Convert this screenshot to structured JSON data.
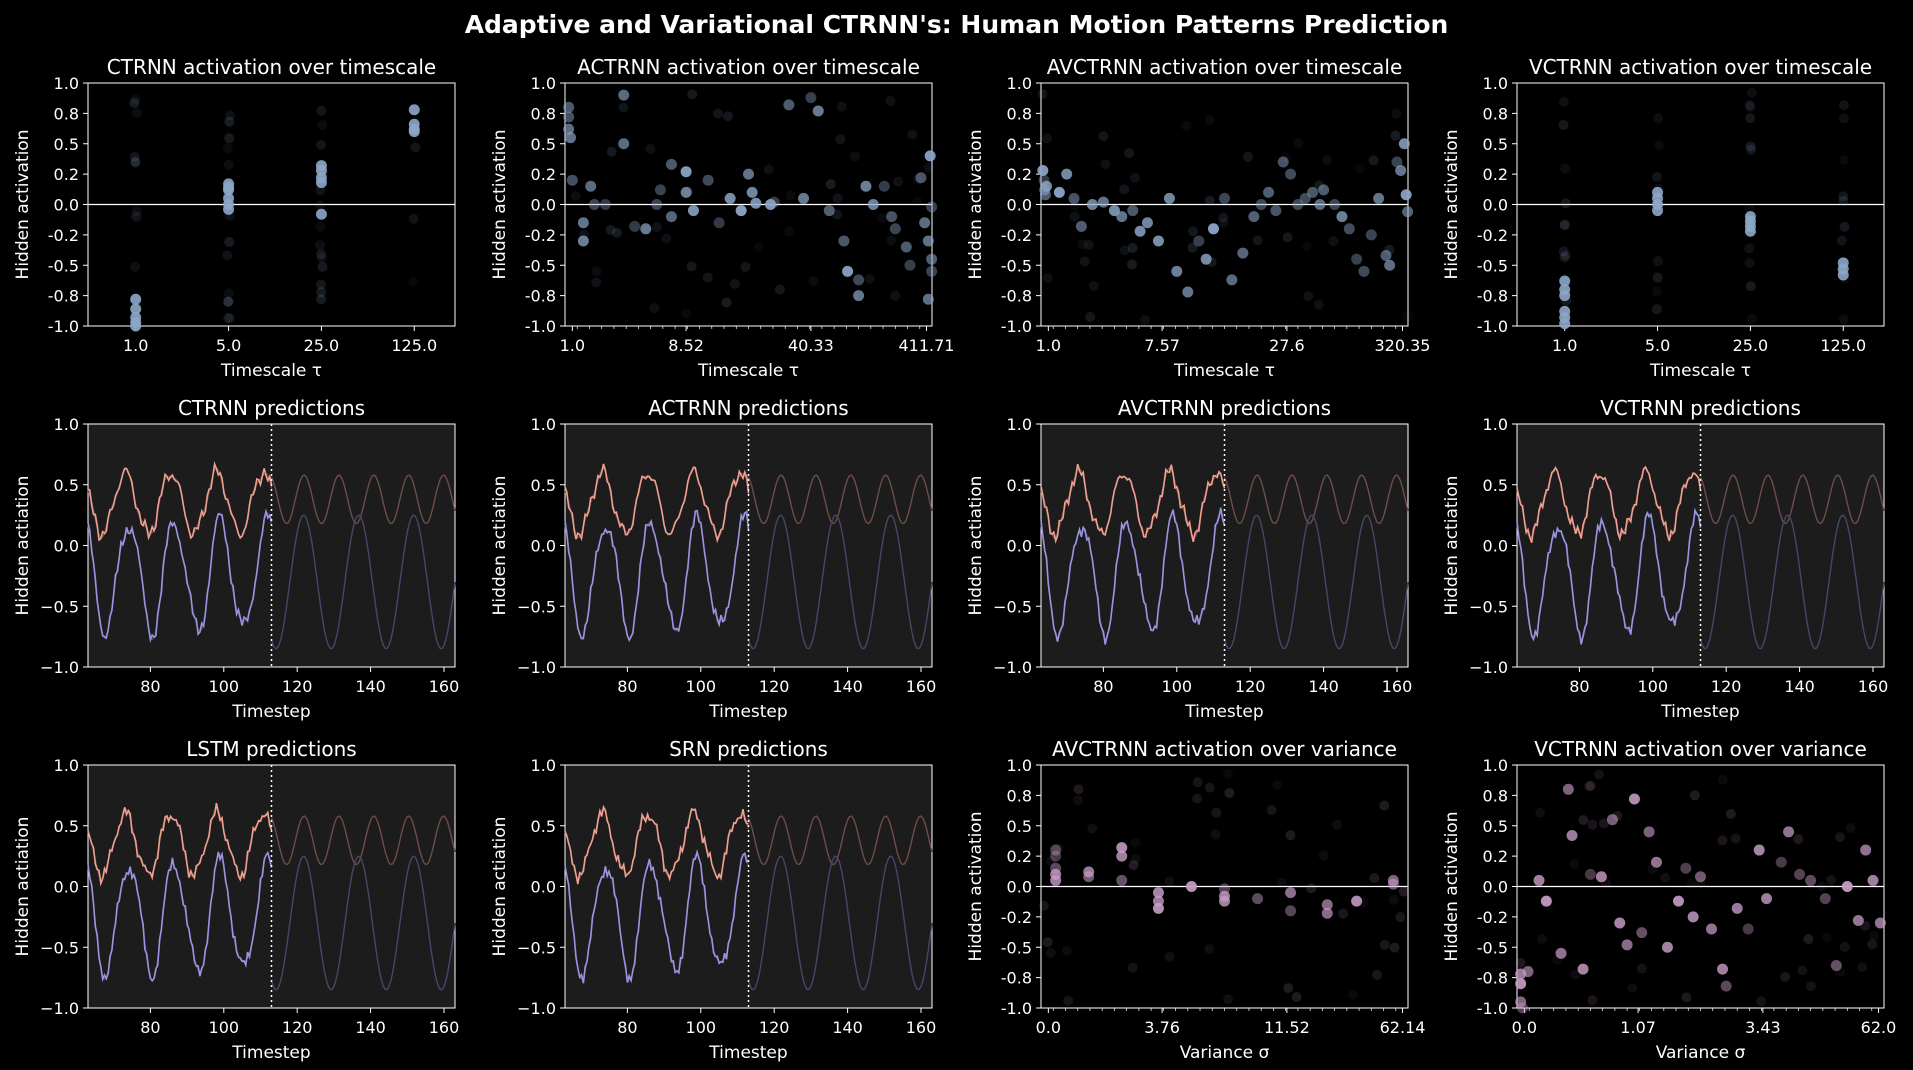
{
  "title": "Adaptive and Variational CTRNN's: Human Motion Patterns Prediction",
  "colors": {
    "background": "#000000",
    "panel_line": "#1c1c1c",
    "scatter_timescale": "#8da6c8",
    "scatter_variance": "#c79dc6",
    "target_top": "#f0a090",
    "target_bottom": "#9a95e0",
    "future_top": "#6e4c48",
    "future_bottom": "#47466a"
  },
  "chart_data": [
    {
      "id": "ctrnn-activation",
      "type": "scatter",
      "title": "CTRNN activation over timescale",
      "xlabel": "Timescale τ",
      "ylabel": "Hidden activation",
      "ylim": [
        -1,
        1
      ],
      "yticks": [
        "-1.0",
        "-0.8",
        "-0.5",
        "-0.2",
        "0.0",
        "0.2",
        "0.5",
        "0.8",
        "1.0"
      ],
      "xticks": [
        "1.0",
        "5.0",
        "25.0",
        "125.0"
      ],
      "hline": 0,
      "groups": [
        {
          "x": "1.0",
          "values": [
            -0.78,
            -0.86,
            -0.93,
            -0.97,
            -1.0
          ]
        },
        {
          "x": "5.0",
          "values": [
            0.17,
            0.14,
            0.12,
            0.05,
            0.0,
            -0.04
          ]
        },
        {
          "x": "25.0",
          "values": [
            0.32,
            0.28,
            0.22,
            0.18,
            -0.08
          ]
        },
        {
          "x": "125.0",
          "values": [
            0.78,
            0.66,
            0.62,
            0.6
          ]
        }
      ]
    },
    {
      "id": "actrnn-activation",
      "type": "scatter",
      "title": "ACTRNN activation over timescale",
      "xlabel": "Timescale τ",
      "ylabel": "Hidden activation",
      "ylim": [
        -1,
        1
      ],
      "yticks": [
        "-1.0",
        "-0.8",
        "-0.5",
        "-0.2",
        "0.0",
        "0.2",
        "0.5",
        "0.8",
        "1.0"
      ],
      "xticks": [
        "1.0",
        "8.52",
        "40.33",
        "411.71"
      ],
      "hline": 0,
      "points": [
        [
          0.01,
          0.8
        ],
        [
          0.01,
          0.72
        ],
        [
          0.01,
          0.62
        ],
        [
          0.015,
          0.55
        ],
        [
          0.02,
          0.2
        ],
        [
          0.05,
          -0.15
        ],
        [
          0.05,
          -0.3
        ],
        [
          0.07,
          0.15
        ],
        [
          0.08,
          0.0
        ],
        [
          0.11,
          0.0
        ],
        [
          0.16,
          0.5
        ],
        [
          0.16,
          0.9
        ],
        [
          0.19,
          -0.18
        ],
        [
          0.22,
          -0.2
        ],
        [
          0.25,
          0.0
        ],
        [
          0.26,
          0.12
        ],
        [
          0.29,
          0.33
        ],
        [
          0.29,
          -0.1
        ],
        [
          0.33,
          0.1
        ],
        [
          0.33,
          0.27
        ],
        [
          0.35,
          -0.05
        ],
        [
          0.39,
          0.2
        ],
        [
          0.42,
          -0.15
        ],
        [
          0.45,
          0.05
        ],
        [
          0.48,
          -0.05
        ],
        [
          0.52,
          0.01
        ],
        [
          0.51,
          0.1
        ],
        [
          0.5,
          0.25
        ],
        [
          0.56,
          0.0
        ],
        [
          0.57,
          0.02
        ],
        [
          0.61,
          0.82
        ],
        [
          0.65,
          0.05
        ],
        [
          0.67,
          0.88
        ],
        [
          0.69,
          0.77
        ],
        [
          0.72,
          -0.05
        ],
        [
          0.76,
          -0.3
        ],
        [
          0.77,
          -0.55
        ],
        [
          0.8,
          -0.75
        ],
        [
          0.8,
          -0.62
        ],
        [
          0.82,
          0.15
        ],
        [
          0.84,
          0.0
        ],
        [
          0.87,
          0.15
        ],
        [
          0.89,
          -0.1
        ],
        [
          0.9,
          -0.2
        ],
        [
          0.93,
          -0.35
        ],
        [
          0.94,
          -0.5
        ],
        [
          0.97,
          0.22
        ],
        [
          0.98,
          -0.15
        ],
        [
          0.99,
          -0.3
        ],
        [
          0.99,
          -0.78
        ],
        [
          0.995,
          0.4
        ],
        [
          0.999,
          -0.02
        ],
        [
          0.999,
          -0.45
        ],
        [
          0.999,
          -0.55
        ]
      ]
    },
    {
      "id": "avctrnn-activation",
      "type": "scatter",
      "title": "AVCTRNN activation over timescale",
      "xlabel": "Timescale τ",
      "ylabel": "Hidden activation",
      "ylim": [
        -1,
        1
      ],
      "yticks": [
        "-1.0",
        "-0.8",
        "-0.5",
        "-0.2",
        "0.0",
        "0.2",
        "0.5",
        "0.8",
        "1.0"
      ],
      "xticks": [
        "1.0",
        "7.57",
        "27.6",
        "320.35"
      ],
      "hline": 0,
      "points": [
        [
          0.005,
          0.28
        ],
        [
          0.008,
          0.2
        ],
        [
          0.01,
          0.12
        ],
        [
          0.012,
          0.08
        ],
        [
          0.015,
          0.15
        ],
        [
          0.05,
          0.1
        ],
        [
          0.07,
          0.25
        ],
        [
          0.09,
          0.05
        ],
        [
          0.11,
          -0.18
        ],
        [
          0.14,
          0.0
        ],
        [
          0.17,
          0.02
        ],
        [
          0.2,
          -0.05
        ],
        [
          0.22,
          -0.1
        ],
        [
          0.25,
          -0.05
        ],
        [
          0.27,
          -0.22
        ],
        [
          0.29,
          -0.15
        ],
        [
          0.32,
          -0.3
        ],
        [
          0.35,
          0.05
        ],
        [
          0.37,
          -0.55
        ],
        [
          0.4,
          -0.72
        ],
        [
          0.43,
          -0.3
        ],
        [
          0.45,
          -0.45
        ],
        [
          0.47,
          -0.2
        ],
        [
          0.5,
          0.05
        ],
        [
          0.52,
          -0.62
        ],
        [
          0.55,
          -0.4
        ],
        [
          0.58,
          -0.1
        ],
        [
          0.6,
          0.0
        ],
        [
          0.62,
          0.1
        ],
        [
          0.64,
          -0.05
        ],
        [
          0.66,
          0.35
        ],
        [
          0.68,
          0.25
        ],
        [
          0.7,
          0.0
        ],
        [
          0.72,
          0.05
        ],
        [
          0.74,
          0.1
        ],
        [
          0.76,
          0.0
        ],
        [
          0.77,
          0.12
        ],
        [
          0.8,
          0.0
        ],
        [
          0.82,
          -0.1
        ],
        [
          0.84,
          -0.2
        ],
        [
          0.86,
          -0.45
        ],
        [
          0.88,
          -0.55
        ],
        [
          0.9,
          -0.25
        ],
        [
          0.92,
          0.05
        ],
        [
          0.94,
          -0.42
        ],
        [
          0.95,
          -0.5
        ],
        [
          0.97,
          0.35
        ],
        [
          0.98,
          0.28
        ],
        [
          0.99,
          0.5
        ],
        [
          0.995,
          0.08
        ],
        [
          0.999,
          -0.06
        ]
      ]
    },
    {
      "id": "vctrnn-activation",
      "type": "scatter",
      "title": "VCTRNN activation over timescale",
      "xlabel": "Timescale τ",
      "ylabel": "Hidden activation",
      "ylim": [
        -1,
        1
      ],
      "yticks": [
        "-1.0",
        "-0.8",
        "-0.5",
        "-0.2",
        "0.0",
        "0.2",
        "0.5",
        "0.8",
        "1.0"
      ],
      "xticks": [
        "1.0",
        "5.0",
        "25.0",
        "125.0"
      ],
      "hline": 0,
      "groups": [
        {
          "x": "1.0",
          "values": [
            -0.63,
            -0.7,
            -0.75,
            -0.88,
            -0.93,
            -0.98
          ]
        },
        {
          "x": "5.0",
          "values": [
            0.1,
            0.05,
            0.0,
            -0.05
          ]
        },
        {
          "x": "25.0",
          "values": [
            -0.1,
            -0.14,
            -0.18,
            -0.22
          ]
        },
        {
          "x": "125.0",
          "values": [
            -0.48,
            -0.53,
            -0.58
          ]
        }
      ]
    },
    {
      "id": "ctrnn-predictions",
      "type": "line",
      "title": "CTRNN predictions",
      "xlabel": "Timestep",
      "ylabel": "Hidden actiation",
      "xlim": [
        63,
        163
      ],
      "ylim": [
        -1,
        1
      ],
      "xticks": [
        80,
        100,
        120,
        140,
        160
      ],
      "yticks": [
        "−1.0",
        "−0.5",
        "0.0",
        "0.5",
        "1.0"
      ],
      "split": 113
    },
    {
      "id": "actrnn-predictions",
      "type": "line",
      "title": "ACTRNN predictions",
      "xlabel": "Timestep",
      "ylabel": "Hidden actiation",
      "xlim": [
        63,
        163
      ],
      "ylim": [
        -1,
        1
      ],
      "xticks": [
        80,
        100,
        120,
        140,
        160
      ],
      "yticks": [
        "−1.0",
        "−0.5",
        "0.0",
        "0.5",
        "1.0"
      ],
      "split": 113
    },
    {
      "id": "avctrnn-predictions",
      "type": "line",
      "title": "AVCTRNN predictions",
      "xlabel": "Timestep",
      "ylabel": "Hidden actiation",
      "xlim": [
        63,
        163
      ],
      "ylim": [
        -1,
        1
      ],
      "xticks": [
        80,
        100,
        120,
        140,
        160
      ],
      "yticks": [
        "−1.0",
        "−0.5",
        "0.0",
        "0.5",
        "1.0"
      ],
      "split": 113
    },
    {
      "id": "vctrnn-predictions",
      "type": "line",
      "title": "VCTRNN predictions",
      "xlabel": "Timestep",
      "ylabel": "Hidden actiation",
      "xlim": [
        63,
        163
      ],
      "ylim": [
        -1,
        1
      ],
      "xticks": [
        80,
        100,
        120,
        140,
        160
      ],
      "yticks": [
        "−1.0",
        "−0.5",
        "0.0",
        "0.5",
        "1.0"
      ],
      "split": 113
    },
    {
      "id": "lstm-predictions",
      "type": "line",
      "title": "LSTM predictions",
      "xlabel": "Timestep",
      "ylabel": "Hidden actiation",
      "xlim": [
        63,
        163
      ],
      "ylim": [
        -1,
        1
      ],
      "xticks": [
        80,
        100,
        120,
        140,
        160
      ],
      "yticks": [
        "−1.0",
        "−0.5",
        "0.0",
        "0.5",
        "1.0"
      ],
      "split": 113
    },
    {
      "id": "srn-predictions",
      "type": "line",
      "title": "SRN predictions",
      "xlabel": "Timestep",
      "ylabel": "Hidden actiation",
      "xlim": [
        63,
        163
      ],
      "ylim": [
        -1,
        1
      ],
      "xticks": [
        80,
        100,
        120,
        140,
        160
      ],
      "yticks": [
        "−1.0",
        "−0.5",
        "0.0",
        "0.5",
        "1.0"
      ],
      "split": 113
    },
    {
      "id": "avctrnn-variance",
      "type": "scatter",
      "title": "AVCTRNN activation over variance",
      "xlabel": "Variance σ",
      "ylabel": "Hidden activation",
      "ylim": [
        -1,
        1
      ],
      "yticks": [
        "-1.0",
        "-0.8",
        "-0.5",
        "-0.2",
        "0.0",
        "0.2",
        "0.5",
        "0.8",
        "1.0"
      ],
      "xticks": [
        "0.0",
        "3.76",
        "11.52",
        "62.14"
      ],
      "hline": 0,
      "points": [
        [
          0.04,
          0.3
        ],
        [
          0.04,
          0.25
        ],
        [
          0.04,
          0.15
        ],
        [
          0.04,
          0.1
        ],
        [
          0.04,
          0.05
        ],
        [
          0.13,
          0.12
        ],
        [
          0.13,
          0.08
        ],
        [
          0.22,
          0.32
        ],
        [
          0.22,
          0.25
        ],
        [
          0.22,
          0.05
        ],
        [
          0.32,
          -0.05
        ],
        [
          0.32,
          -0.12
        ],
        [
          0.32,
          -0.18
        ],
        [
          0.41,
          0.0
        ],
        [
          0.5,
          -0.02
        ],
        [
          0.5,
          -0.08
        ],
        [
          0.5,
          -0.12
        ],
        [
          0.59,
          -0.1
        ],
        [
          0.68,
          -0.2
        ],
        [
          0.68,
          -0.05
        ],
        [
          0.78,
          -0.15
        ],
        [
          0.78,
          -0.22
        ],
        [
          0.86,
          -0.12
        ],
        [
          0.96,
          0.05
        ],
        [
          0.96,
          0.02
        ]
      ]
    },
    {
      "id": "vctrnn-variance",
      "type": "scatter",
      "title": "VCTRNN activation over variance",
      "xlabel": "Variance σ",
      "ylabel": "Hidden activation",
      "ylim": [
        -1,
        1
      ],
      "yticks": [
        "-1.0",
        "-0.8",
        "-0.5",
        "-0.2",
        "0.0",
        "0.2",
        "0.5",
        "0.8",
        "1.0"
      ],
      "xticks": [
        "0.0",
        "1.07",
        "3.43",
        "62.0"
      ],
      "hline": 0,
      "points": [
        [
          0.01,
          -0.72
        ],
        [
          0.01,
          -0.8
        ],
        [
          0.01,
          -0.95
        ],
        [
          0.015,
          -1.0
        ],
        [
          0.03,
          -0.7
        ],
        [
          0.06,
          0.05
        ],
        [
          0.08,
          -0.12
        ],
        [
          0.12,
          -0.55
        ],
        [
          0.14,
          0.8
        ],
        [
          0.15,
          0.42
        ],
        [
          0.18,
          -0.68
        ],
        [
          0.2,
          0.1
        ],
        [
          0.23,
          0.08
        ],
        [
          0.26,
          0.55
        ],
        [
          0.28,
          -0.3
        ],
        [
          0.3,
          -0.48
        ],
        [
          0.32,
          0.72
        ],
        [
          0.34,
          -0.38
        ],
        [
          0.36,
          0.45
        ],
        [
          0.38,
          0.2
        ],
        [
          0.41,
          -0.5
        ],
        [
          0.44,
          -0.12
        ],
        [
          0.46,
          0.15
        ],
        [
          0.48,
          -0.25
        ],
        [
          0.5,
          0.08
        ],
        [
          0.53,
          -0.35
        ],
        [
          0.56,
          -0.68
        ],
        [
          0.57,
          -0.82
        ],
        [
          0.6,
          -0.18
        ],
        [
          0.63,
          -0.35
        ],
        [
          0.66,
          0.3
        ],
        [
          0.68,
          -0.1
        ],
        [
          0.72,
          0.2
        ],
        [
          0.74,
          0.45
        ],
        [
          0.77,
          0.1
        ],
        [
          0.8,
          0.05
        ],
        [
          0.84,
          -0.1
        ],
        [
          0.87,
          -0.65
        ],
        [
          0.9,
          0.0
        ],
        [
          0.93,
          -0.28
        ],
        [
          0.95,
          0.3
        ],
        [
          0.97,
          0.05
        ],
        [
          0.99,
          -0.3
        ]
      ]
    }
  ]
}
